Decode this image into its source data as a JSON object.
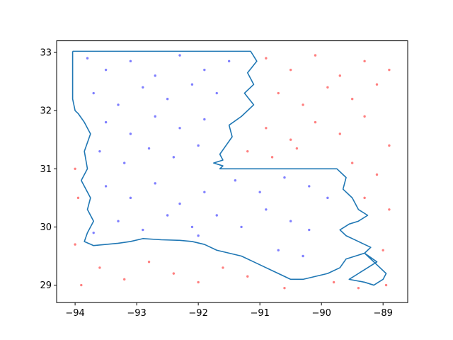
{
  "chart_data": {
    "type": "scatter",
    "title": "",
    "xlabel": "",
    "ylabel": "",
    "xlim": [
      -94.3,
      -88.6
    ],
    "ylim": [
      28.7,
      33.2
    ],
    "x_ticks": [
      -94,
      -93,
      -92,
      -91,
      -90,
      -89
    ],
    "x_tick_labels": [
      "−94",
      "−93",
      "−92",
      "−91",
      "−90",
      "−89"
    ],
    "y_ticks": [
      29,
      30,
      31,
      32,
      33
    ],
    "y_tick_labels": [
      "29",
      "30",
      "31",
      "32",
      "33"
    ],
    "grid": false,
    "legend": "none",
    "colors": {
      "inside": "#0000ff",
      "outside": "#ff0000",
      "boundary": "#1f77b4",
      "axes": "#000000"
    },
    "point_alpha": 0.5,
    "point_sample_note": "",
    "boundary": {
      "x": [
        -94.04,
        -91.15,
        -91.05,
        -91.2,
        -91.1,
        -91.25,
        -91.1,
        -91.3,
        -91.5,
        -91.45,
        -91.55,
        -91.65,
        -91.6,
        -91.75,
        -91.6,
        -91.65,
        -89.75,
        -89.6,
        -89.65,
        -89.5,
        -89.4,
        -89.25,
        -89.4,
        -89.55,
        -89.7,
        -89.6,
        -89.4,
        -89.2,
        -89.3,
        -89.1,
        -89.25,
        -89.4,
        -89.55,
        -89.3,
        -89.15,
        -89.0,
        -88.95,
        -89.1,
        -89.3,
        -89.6,
        -89.7,
        -89.9,
        -90.1,
        -90.3,
        -90.5,
        -90.7,
        -90.9,
        -91.1,
        -91.3,
        -91.5,
        -91.7,
        -91.9,
        -92.1,
        -92.3,
        -92.6,
        -92.9,
        -93.1,
        -93.3,
        -93.5,
        -93.7,
        -93.85,
        -93.8,
        -93.7,
        -93.8,
        -93.75,
        -93.9,
        -93.8,
        -93.85,
        -93.75,
        -93.85,
        -93.95,
        -94.0,
        -94.04,
        -94.04
      ],
      "y": [
        33.02,
        33.02,
        32.85,
        32.65,
        32.45,
        32.3,
        32.1,
        31.9,
        31.75,
        31.55,
        31.4,
        31.25,
        31.15,
        31.1,
        31.05,
        31.0,
        31.0,
        30.85,
        30.65,
        30.5,
        30.3,
        30.2,
        30.1,
        30.05,
        29.95,
        29.85,
        29.75,
        29.65,
        29.55,
        29.4,
        29.3,
        29.2,
        29.1,
        29.05,
        29.0,
        29.1,
        29.2,
        29.35,
        29.55,
        29.45,
        29.3,
        29.2,
        29.15,
        29.1,
        29.1,
        29.2,
        29.3,
        29.4,
        29.5,
        29.55,
        29.6,
        29.7,
        29.75,
        29.77,
        29.78,
        29.8,
        29.75,
        29.72,
        29.7,
        29.68,
        29.75,
        29.9,
        30.1,
        30.3,
        30.5,
        30.8,
        31.0,
        31.3,
        31.6,
        31.8,
        31.95,
        32.0,
        32.2,
        33.02
      ]
    },
    "series": [
      {
        "name": "",
        "color": "#0000ff",
        "points": [
          [
            -93.8,
            32.9
          ],
          [
            -93.5,
            32.7
          ],
          [
            -93.1,
            32.85
          ],
          [
            -92.7,
            32.6
          ],
          [
            -92.3,
            32.95
          ],
          [
            -91.9,
            32.7
          ],
          [
            -91.5,
            32.85
          ],
          [
            -93.7,
            32.3
          ],
          [
            -93.3,
            32.1
          ],
          [
            -92.9,
            32.4
          ],
          [
            -92.5,
            32.2
          ],
          [
            -92.1,
            32.45
          ],
          [
            -91.7,
            32.3
          ],
          [
            -93.5,
            31.8
          ],
          [
            -93.1,
            31.6
          ],
          [
            -92.7,
            31.9
          ],
          [
            -92.3,
            31.7
          ],
          [
            -91.9,
            31.85
          ],
          [
            -93.6,
            31.3
          ],
          [
            -93.2,
            31.1
          ],
          [
            -92.8,
            31.35
          ],
          [
            -92.4,
            31.2
          ],
          [
            -92.0,
            31.4
          ],
          [
            -91.4,
            30.8
          ],
          [
            -91.0,
            30.6
          ],
          [
            -90.6,
            30.85
          ],
          [
            -90.2,
            30.7
          ],
          [
            -89.9,
            30.5
          ],
          [
            -93.5,
            30.7
          ],
          [
            -93.1,
            30.5
          ],
          [
            -92.7,
            30.75
          ],
          [
            -92.3,
            30.4
          ],
          [
            -91.9,
            30.6
          ],
          [
            -93.3,
            30.1
          ],
          [
            -92.9,
            29.95
          ],
          [
            -92.5,
            30.2
          ],
          [
            -92.1,
            30.0
          ],
          [
            -91.7,
            30.2
          ],
          [
            -91.3,
            30.0
          ],
          [
            -90.9,
            30.3
          ],
          [
            -90.5,
            30.1
          ],
          [
            -90.2,
            29.95
          ],
          [
            -93.7,
            29.9
          ],
          [
            -92.0,
            29.85
          ],
          [
            -90.7,
            29.6
          ],
          [
            -90.3,
            29.5
          ]
        ]
      },
      {
        "name": "",
        "color": "#ff0000",
        "points": [
          [
            -90.9,
            32.9
          ],
          [
            -90.5,
            32.7
          ],
          [
            -90.1,
            32.95
          ],
          [
            -89.7,
            32.6
          ],
          [
            -89.3,
            32.85
          ],
          [
            -88.9,
            32.7
          ],
          [
            -90.7,
            32.3
          ],
          [
            -90.3,
            32.1
          ],
          [
            -89.9,
            32.4
          ],
          [
            -89.5,
            32.2
          ],
          [
            -89.1,
            32.45
          ],
          [
            -90.9,
            31.7
          ],
          [
            -90.5,
            31.5
          ],
          [
            -90.1,
            31.8
          ],
          [
            -89.7,
            31.6
          ],
          [
            -89.3,
            31.9
          ],
          [
            -88.9,
            31.4
          ],
          [
            -91.2,
            31.3
          ],
          [
            -90.8,
            31.2
          ],
          [
            -90.4,
            31.35
          ],
          [
            -89.5,
            31.1
          ],
          [
            -89.1,
            30.9
          ],
          [
            -89.3,
            30.5
          ],
          [
            -88.9,
            30.3
          ],
          [
            -94.0,
            31.0
          ],
          [
            -93.95,
            30.5
          ],
          [
            -94.0,
            29.7
          ],
          [
            -93.6,
            29.3
          ],
          [
            -93.2,
            29.1
          ],
          [
            -92.8,
            29.4
          ],
          [
            -92.4,
            29.2
          ],
          [
            -92.0,
            29.05
          ],
          [
            -91.6,
            29.3
          ],
          [
            -91.2,
            29.15
          ],
          [
            -90.6,
            28.95
          ],
          [
            -89.8,
            29.05
          ],
          [
            -89.4,
            28.95
          ],
          [
            -88.95,
            29.0
          ],
          [
            -89.0,
            29.6
          ],
          [
            -93.9,
            29.0
          ]
        ]
      }
    ]
  }
}
